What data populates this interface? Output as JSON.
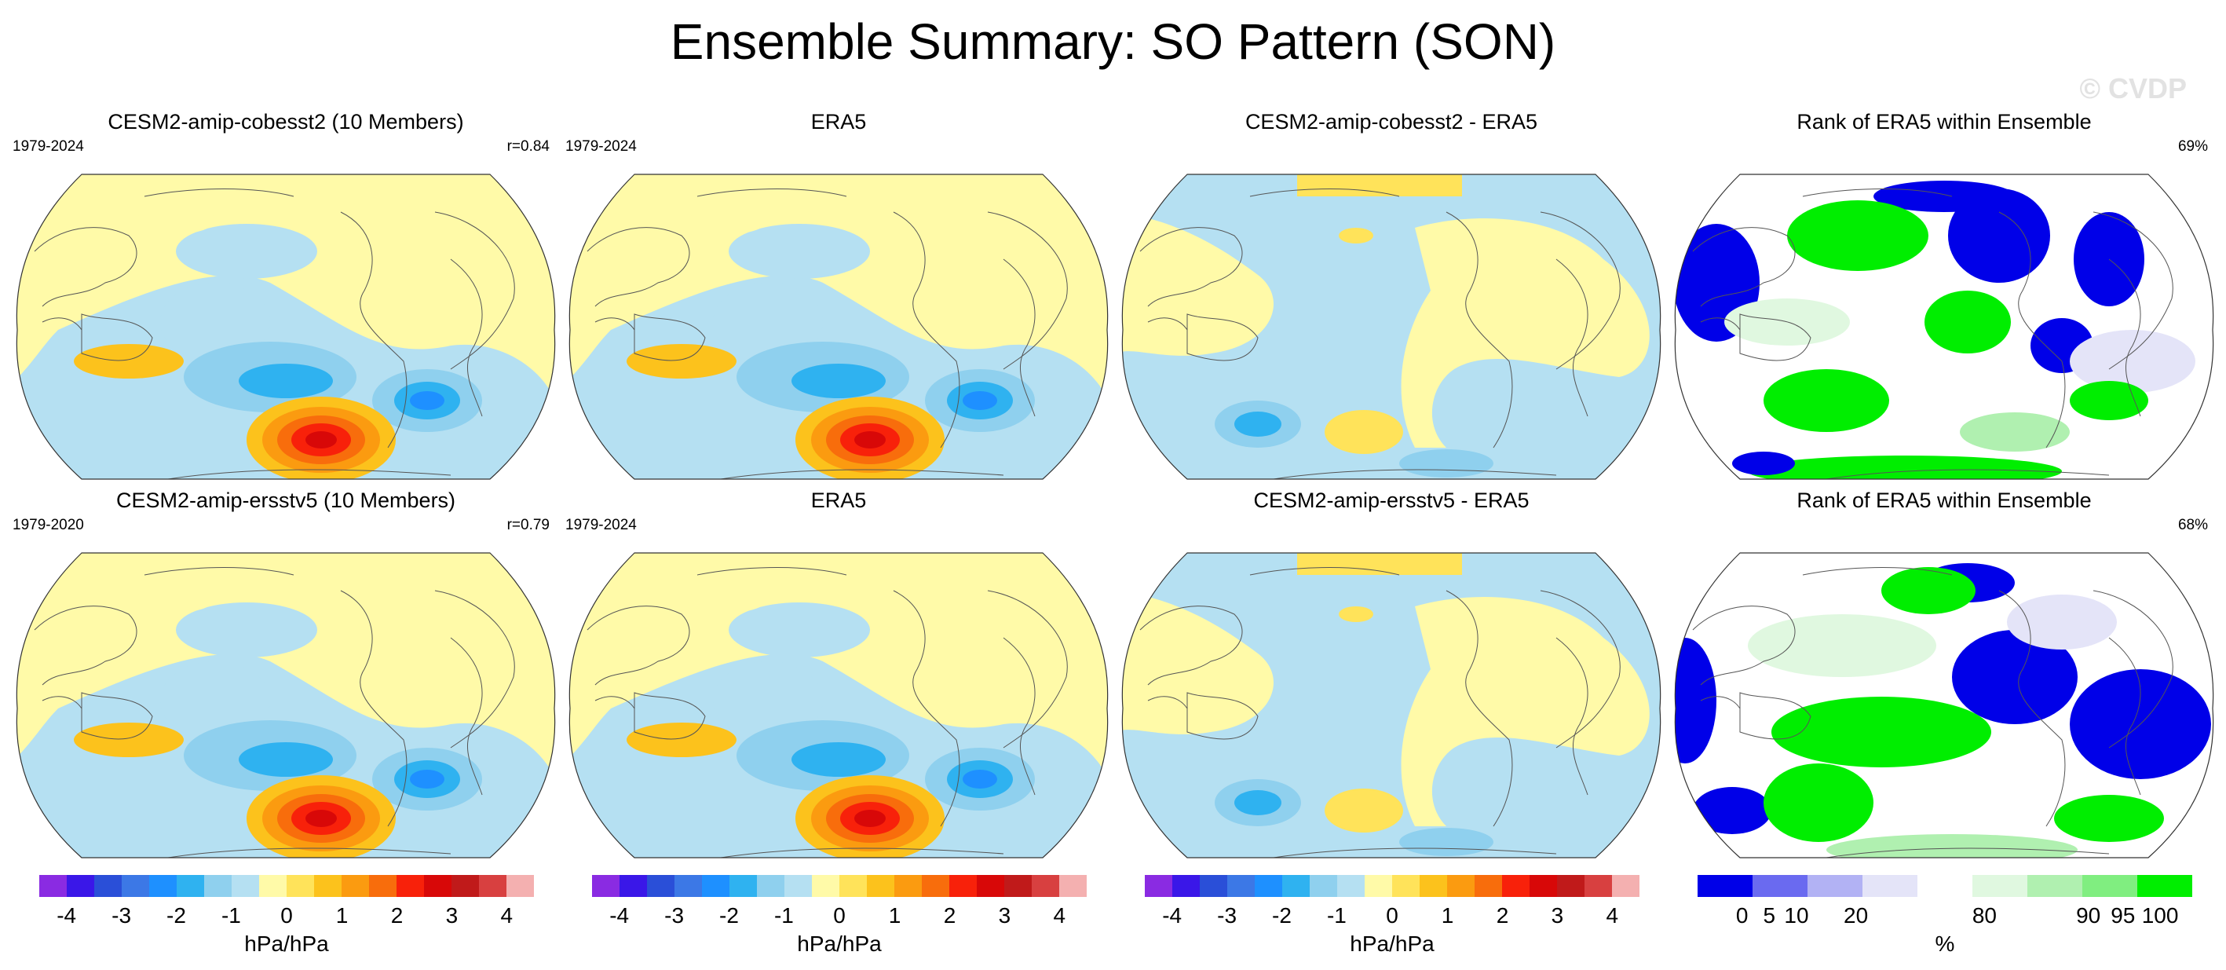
{
  "figure": {
    "title": "Ensemble Summary: SO Pattern (SON)",
    "watermark": "© CVDP"
  },
  "panels": [
    {
      "title": "CESM2-amip-cobesst2 (10 Members)",
      "left_text": "1979-2024",
      "right_text": "r=0.84",
      "kind": "pattern"
    },
    {
      "title": "ERA5",
      "left_text": "1979-2024",
      "right_text": "",
      "kind": "pattern"
    },
    {
      "title": "CESM2-amip-cobesst2 - ERA5",
      "left_text": "",
      "right_text": "",
      "kind": "diff"
    },
    {
      "title": "Rank of ERA5 within Ensemble",
      "left_text": "",
      "right_text": "69%",
      "kind": "rank"
    },
    {
      "title": "CESM2-amip-ersstv5 (10 Members)",
      "left_text": "1979-2020",
      "right_text": "r=0.79",
      "kind": "pattern"
    },
    {
      "title": "ERA5",
      "left_text": "1979-2024",
      "right_text": "",
      "kind": "pattern"
    },
    {
      "title": "CESM2-amip-ersstv5 - ERA5",
      "left_text": "",
      "right_text": "",
      "kind": "diff"
    },
    {
      "title": "Rank of ERA5 within Ensemble",
      "left_text": "",
      "right_text": "68%",
      "kind": "rank"
    }
  ],
  "colorbars": {
    "pattern": {
      "ticks": [
        "-4",
        "-3",
        "-2",
        "-1",
        "0",
        "1",
        "2",
        "3",
        "4"
      ],
      "unit": "hPa/hPa",
      "colors": [
        "#8a2be2",
        "#3a17e8",
        "#2a4fd8",
        "#3c78e6",
        "#1e90ff",
        "#2fb2f0",
        "#8fd0ee",
        "#b5e0f2",
        "#fffaa8",
        "#ffe35a",
        "#fcc21c",
        "#fb9b10",
        "#f86d0c",
        "#f8210a",
        "#d80808",
        "#c01a1a",
        "#d84040",
        "#f4b0b0"
      ]
    },
    "rank": {
      "ticks": [
        "0",
        "5",
        "10",
        "20",
        "80",
        "90",
        "95",
        "100"
      ],
      "unit": "%",
      "colors": [
        "#0000e8",
        "#6a6af0",
        "#b2b2f4",
        "#e4e4f8",
        "#ffffff",
        "#e0f8e0",
        "#b0f0b0",
        "#80ee80",
        "#00ee00"
      ]
    }
  },
  "legend_colors": {
    "ocean_negative": "#b5e0f2",
    "land_positive": "#fffaa8",
    "strong_negative": "#1e90ff",
    "strong_positive": "#f8210a",
    "rank_low": "#0000e8",
    "rank_high": "#00ee00"
  }
}
